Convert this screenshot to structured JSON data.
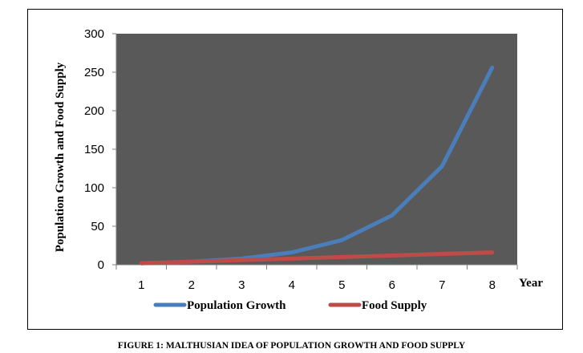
{
  "caption": "FIGURE 1: MALTHUSIAN IDEA OF POPULATION GROWTH AND FOOD SUPPLY",
  "chart_data": {
    "type": "line",
    "title": "",
    "xlabel": "Year",
    "ylabel": "Population Growth and Food Supply",
    "x": [
      1,
      2,
      3,
      4,
      5,
      6,
      7,
      8
    ],
    "ylim": [
      0,
      300
    ],
    "yticks": [
      0,
      50,
      100,
      150,
      200,
      250,
      300
    ],
    "grid": false,
    "plot_background": "#595959",
    "legend_position": "bottom",
    "series": [
      {
        "name": "Population Growth",
        "values": [
          2,
          4,
          8,
          16,
          32,
          64,
          128,
          256
        ],
        "color": "#4a7ebb"
      },
      {
        "name": "Food Supply",
        "values": [
          2,
          4,
          6,
          8,
          10,
          12,
          14,
          16
        ],
        "color": "#be4b48"
      }
    ]
  }
}
